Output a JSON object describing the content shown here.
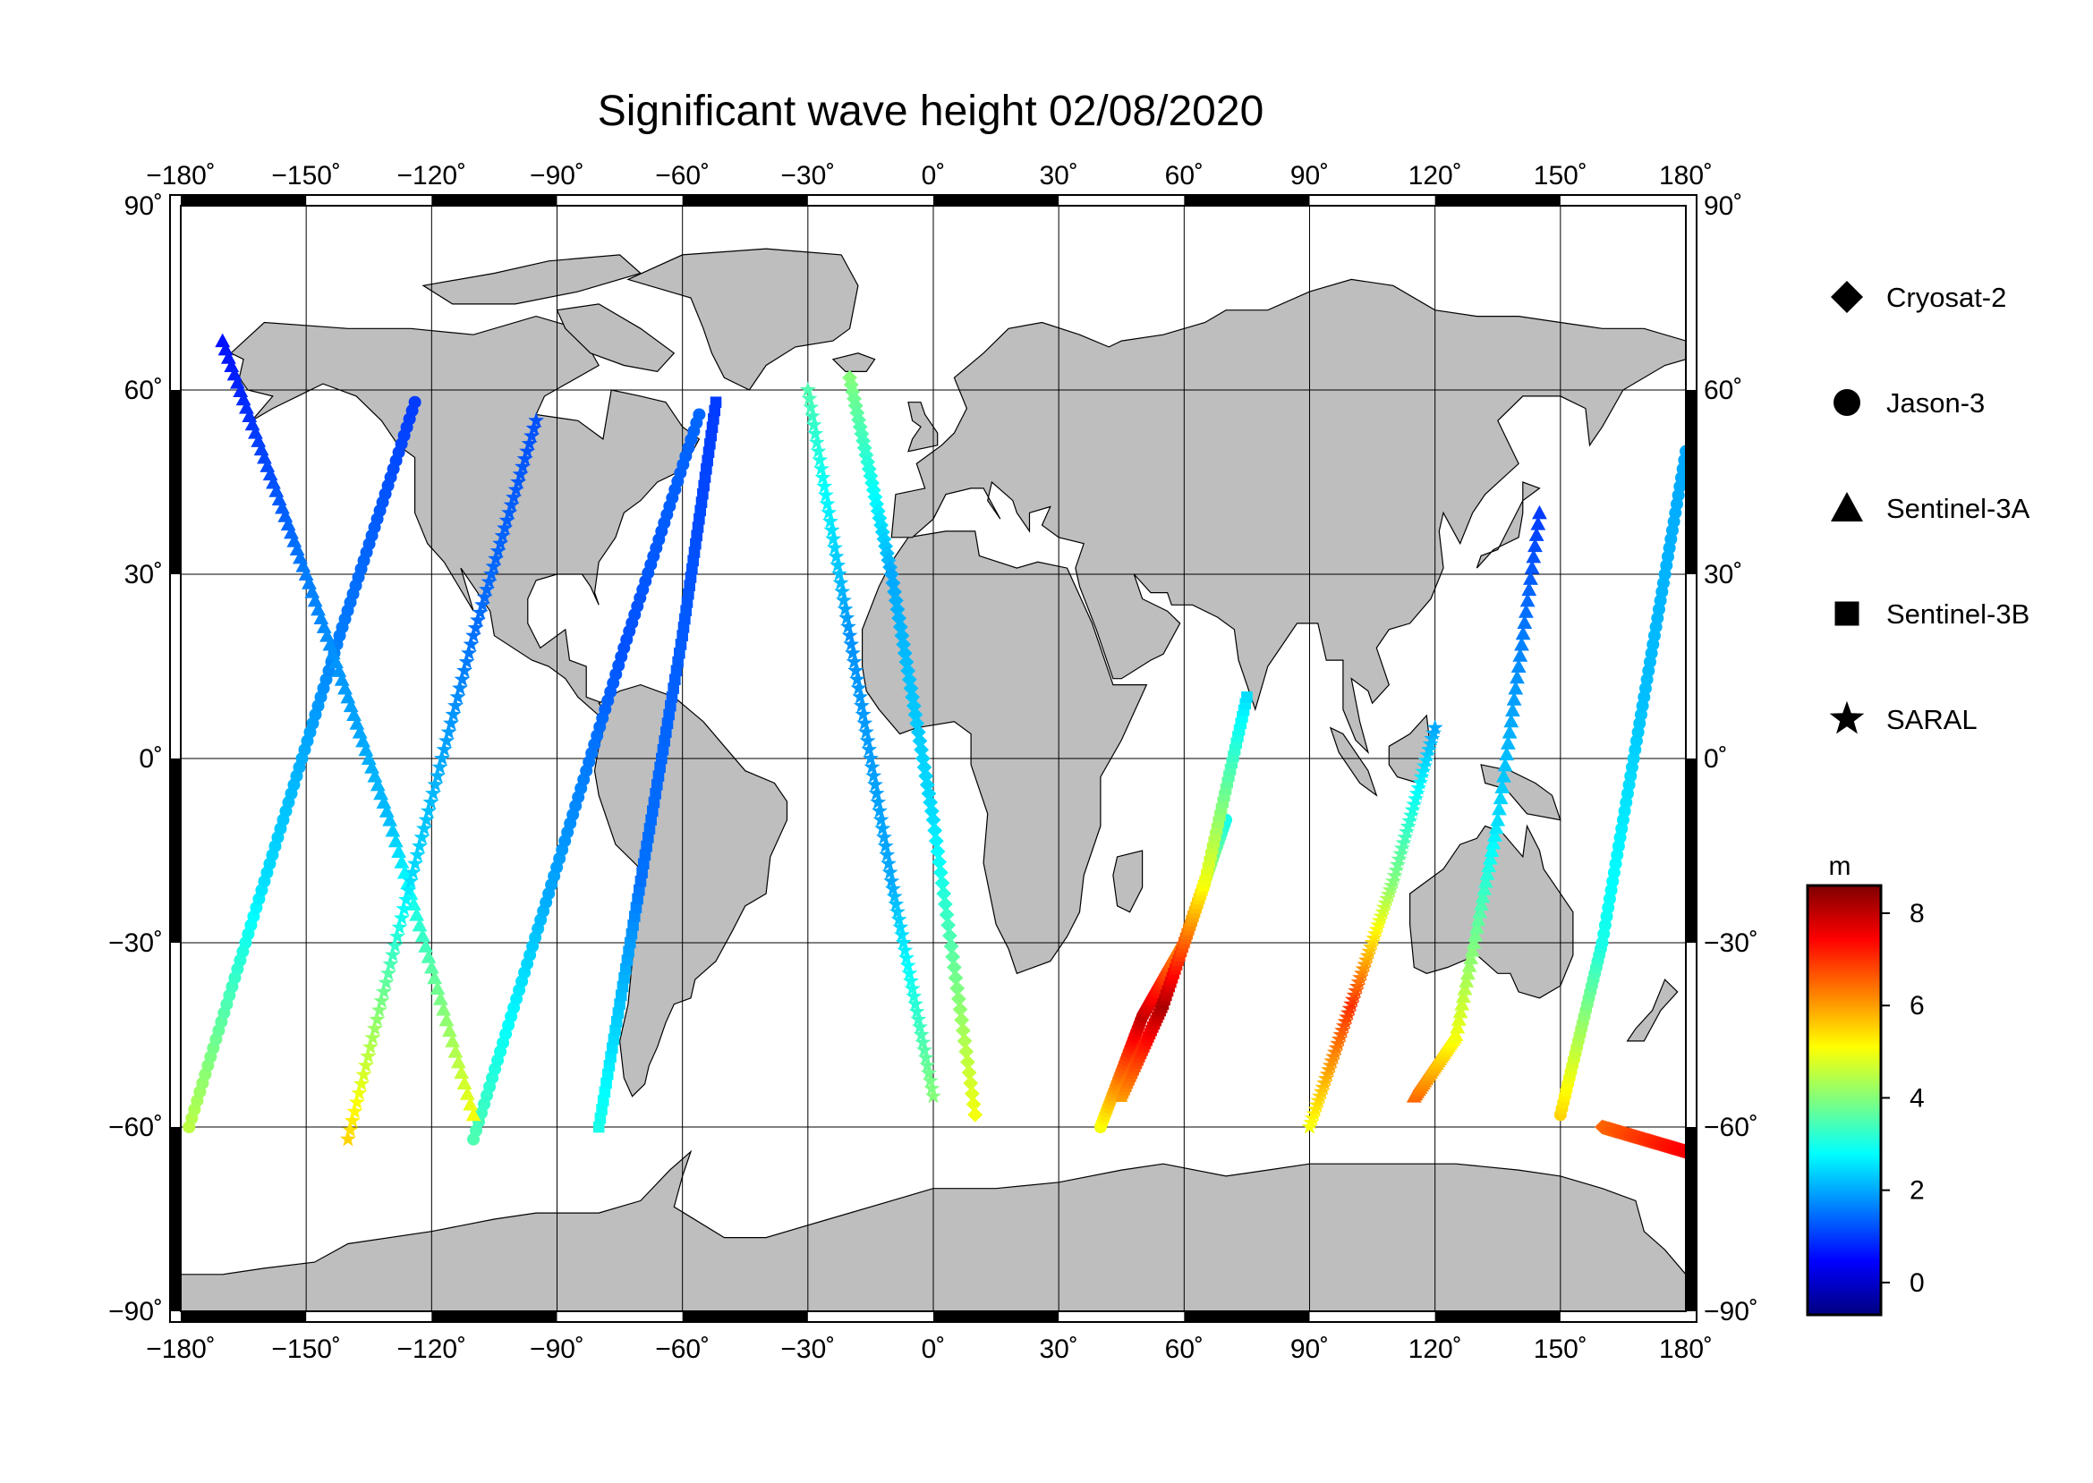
{
  "title": "Significant wave height 02/08/2020",
  "map": {
    "lon_range": [
      -180,
      180
    ],
    "lat_range": [
      -90,
      90
    ],
    "lon_ticks": [
      -180,
      -150,
      -120,
      -90,
      -60,
      -30,
      0,
      30,
      60,
      90,
      120,
      150,
      180
    ],
    "lat_ticks": [
      -90,
      -60,
      -30,
      0,
      30,
      60,
      90
    ],
    "lon_tick_labels": [
      "−180˚",
      "−150˚",
      "−120˚",
      "−90˚",
      "−60˚",
      "−30˚",
      "0˚",
      "30˚",
      "60˚",
      "90˚",
      "120˚",
      "150˚",
      "180˚"
    ],
    "lat_tick_labels": [
      "−90˚",
      "−60˚",
      "−30˚",
      "0˚",
      "30˚",
      "60˚",
      "90˚"
    ],
    "land_color": "#bebebe",
    "ocean_color": "#ffffff",
    "grid": true
  },
  "legend": {
    "items": [
      {
        "symbol": "diamond-icon",
        "label": "Cryosat-2"
      },
      {
        "symbol": "circle-icon",
        "label": "Jason-3"
      },
      {
        "symbol": "triangle-icon",
        "label": "Sentinel-3A"
      },
      {
        "symbol": "square-icon",
        "label": "Sentinel-3B"
      },
      {
        "symbol": "star-icon",
        "label": "SARAL"
      }
    ]
  },
  "colorbar": {
    "unit": "m",
    "range": [
      -0.7,
      8.6
    ],
    "ticks": [
      0,
      2,
      4,
      6,
      8
    ],
    "tick_labels": [
      "0",
      "2",
      "4",
      "6",
      "8"
    ],
    "colormap": [
      "#00007f",
      "#0000ff",
      "#007fff",
      "#00ffff",
      "#7fff7f",
      "#ffff00",
      "#ff7f00",
      "#ff0000",
      "#7f0000"
    ]
  },
  "chart_data": {
    "type": "scatter",
    "title": "Significant wave height 02/08/2020",
    "xlim": [
      -180,
      180
    ],
    "ylim": [
      -90,
      90
    ],
    "value_unit": "m",
    "tracks": [
      {
        "satellite": "Jason-3",
        "lon": [
          -178,
          -160,
          -142,
          -124
        ],
        "lat": [
          -60,
          -20,
          20,
          58
        ],
        "swh": [
          4.5,
          2.5,
          1.6,
          1.0
        ]
      },
      {
        "satellite": "Jason-3",
        "lon": [
          -110,
          -92,
          -74,
          -56
        ],
        "lat": [
          -62,
          -22,
          18,
          56
        ],
        "swh": [
          3.5,
          2.0,
          1.2,
          1.4
        ]
      },
      {
        "satellite": "Sentinel-3A",
        "lon": [
          -170,
          -150,
          -130,
          -110
        ],
        "lat": [
          68,
          30,
          -10,
          -58
        ],
        "swh": [
          0.6,
          1.6,
          2.2,
          5.0
        ]
      },
      {
        "satellite": "SARAL",
        "lon": [
          -140,
          -125,
          -110,
          -95
        ],
        "lat": [
          -62,
          -20,
          20,
          55
        ],
        "swh": [
          5.5,
          2.5,
          1.5,
          1.2
        ]
      },
      {
        "satellite": "Sentinel-3B",
        "lon": [
          -80,
          -70,
          -60,
          -52
        ],
        "lat": [
          -60,
          -20,
          20,
          58
        ],
        "swh": [
          3.0,
          1.5,
          1.3,
          1.0
        ]
      },
      {
        "satellite": "SARAL",
        "lon": [
          -30,
          -20,
          -10,
          0
        ],
        "lat": [
          60,
          20,
          -20,
          -55
        ],
        "swh": [
          3.5,
          1.8,
          2.0,
          4.0
        ]
      },
      {
        "satellite": "Cryosat-2",
        "lon": [
          -20,
          -10,
          0,
          10
        ],
        "lat": [
          62,
          30,
          -10,
          -58
        ],
        "swh": [
          4.0,
          2.0,
          2.5,
          5.0
        ]
      },
      {
        "satellite": "Jason-3",
        "lon": [
          40,
          50,
          60,
          70
        ],
        "lat": [
          -60,
          -42,
          -30,
          -10
        ],
        "swh": [
          5.0,
          8.0,
          6.0,
          3.0
        ]
      },
      {
        "satellite": "Sentinel-3B",
        "lon": [
          45,
          55,
          65,
          75
        ],
        "lat": [
          -55,
          -40,
          -20,
          10
        ],
        "swh": [
          6.0,
          8.2,
          5.0,
          2.5
        ]
      },
      {
        "satellite": "SARAL",
        "lon": [
          90,
          100,
          110,
          120
        ],
        "lat": [
          -60,
          -40,
          -20,
          5
        ],
        "swh": [
          5.0,
          7.0,
          4.0,
          2.0
        ]
      },
      {
        "satellite": "Sentinel-3A",
        "lon": [
          115,
          125,
          135,
          145
        ],
        "lat": [
          -55,
          -45,
          -10,
          40
        ],
        "swh": [
          6.5,
          5.0,
          2.5,
          1.0
        ]
      },
      {
        "satellite": "Jason-3",
        "lon": [
          150,
          160,
          170,
          180
        ],
        "lat": [
          -58,
          -30,
          10,
          50
        ],
        "swh": [
          5.5,
          3.0,
          2.2,
          2.0
        ]
      },
      {
        "satellite": "Cryosat-2",
        "lon": [
          160,
          170,
          180
        ],
        "lat": [
          -60,
          -62,
          -64
        ],
        "swh": [
          6.5,
          7.0,
          7.5
        ]
      }
    ]
  }
}
